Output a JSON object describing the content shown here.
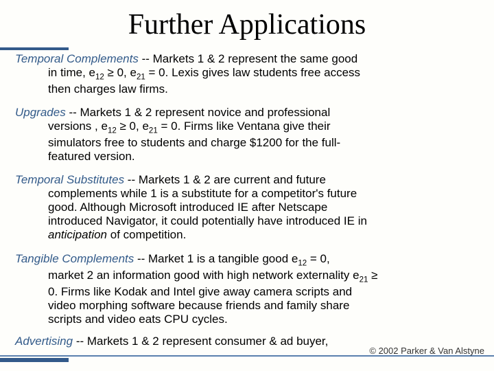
{
  "title": "Further Applications",
  "paragraphs": {
    "p1": {
      "heading": "Temporal Complements",
      "line1": " -- Markets 1 & 2 represent the same good",
      "line2a": "in time, e",
      "line2b": " ≥ 0, e",
      "line2c": " = 0. Lexis gives law students free access",
      "line3": "then charges law firms.",
      "sub1": "12",
      "sub2": "21"
    },
    "p2": {
      "heading": "Upgrades",
      "line1": " -- Markets 1 & 2 represent novice and professional",
      "line2a": "versions , e",
      "line2b": " ≥ 0, e",
      "line2c": " = 0.  Firms like Ventana give their",
      "line3": "simulators free to students and charge $1200 for the full-",
      "line4": "featured version.",
      "sub1": "12",
      "sub2": "21"
    },
    "p3": {
      "heading": "Temporal Substitutes",
      "line1": " -- Markets 1 & 2 are current and future",
      "line2": "complements while 1 is a substitute for a competitor's future",
      "line3": "good. Although Microsoft introduced IE after Netscape",
      "line4": "introduced Navigator, it could potentially have introduced IE in",
      "line5a": "anticipation",
      "line5b": " of competition."
    },
    "p4": {
      "heading": "Tangible Complements",
      "line1a": " -- Market 1 is a tangible good e",
      "line1b": " = 0,",
      "line2a": "market 2 an information good with high network externality e",
      "line2b": " ≥",
      "line3": "0.  Firms like Kodak and Intel give away camera scripts and",
      "line4": "video morphing software because friends and family share",
      "line5": "scripts and video eats CPU cycles.",
      "sub1": "12",
      "sub2": "21"
    },
    "p5": {
      "heading": "Advertising",
      "line1": " -- Markets 1 & 2 represent consumer & ad buyer,"
    }
  },
  "copyright": "© 2002 Parker & Van Alstyne",
  "colors": {
    "heading": "#325a89",
    "accent": "#335a8a",
    "background": "#fefefb"
  }
}
